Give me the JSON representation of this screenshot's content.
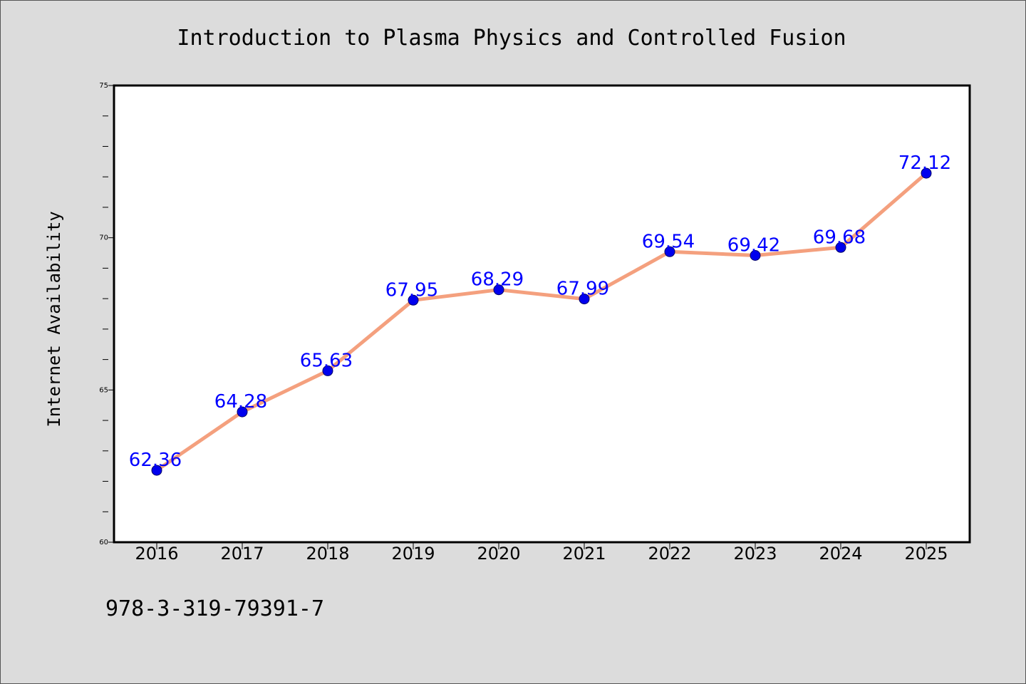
{
  "chart_data": {
    "type": "line",
    "title": "Introduction to Plasma Physics and Controlled Fusion",
    "xlabel": "",
    "ylabel": "Internet Availability",
    "categories": [
      "2016",
      "2017",
      "2018",
      "2019",
      "2020",
      "2021",
      "2022",
      "2023",
      "2024",
      "2025"
    ],
    "series": [
      {
        "values": [
          62.36,
          64.28,
          65.63,
          67.95,
          68.29,
          67.99,
          69.54,
          69.42,
          69.68,
          72.12
        ]
      }
    ],
    "data_labels": [
      "62.36",
      "64.28",
      "65.63",
      "67.95",
      "68.29",
      "67.99",
      "69.54",
      "69.42",
      "69.68",
      "72.12"
    ],
    "ylim": [
      60,
      75
    ],
    "y_ticks": [
      60,
      65,
      70,
      75
    ],
    "y_tick_labels": [
      "60",
      "65",
      "70",
      "75"
    ],
    "grid": false,
    "legend": "none",
    "colors": {
      "line": "#f4a07e",
      "marker": "#0000ee",
      "label": "#0000ff",
      "background": "#dcdcdc",
      "plot_background": "#ffffff"
    }
  },
  "footer": {
    "isbn": "978-3-319-79391-7"
  }
}
